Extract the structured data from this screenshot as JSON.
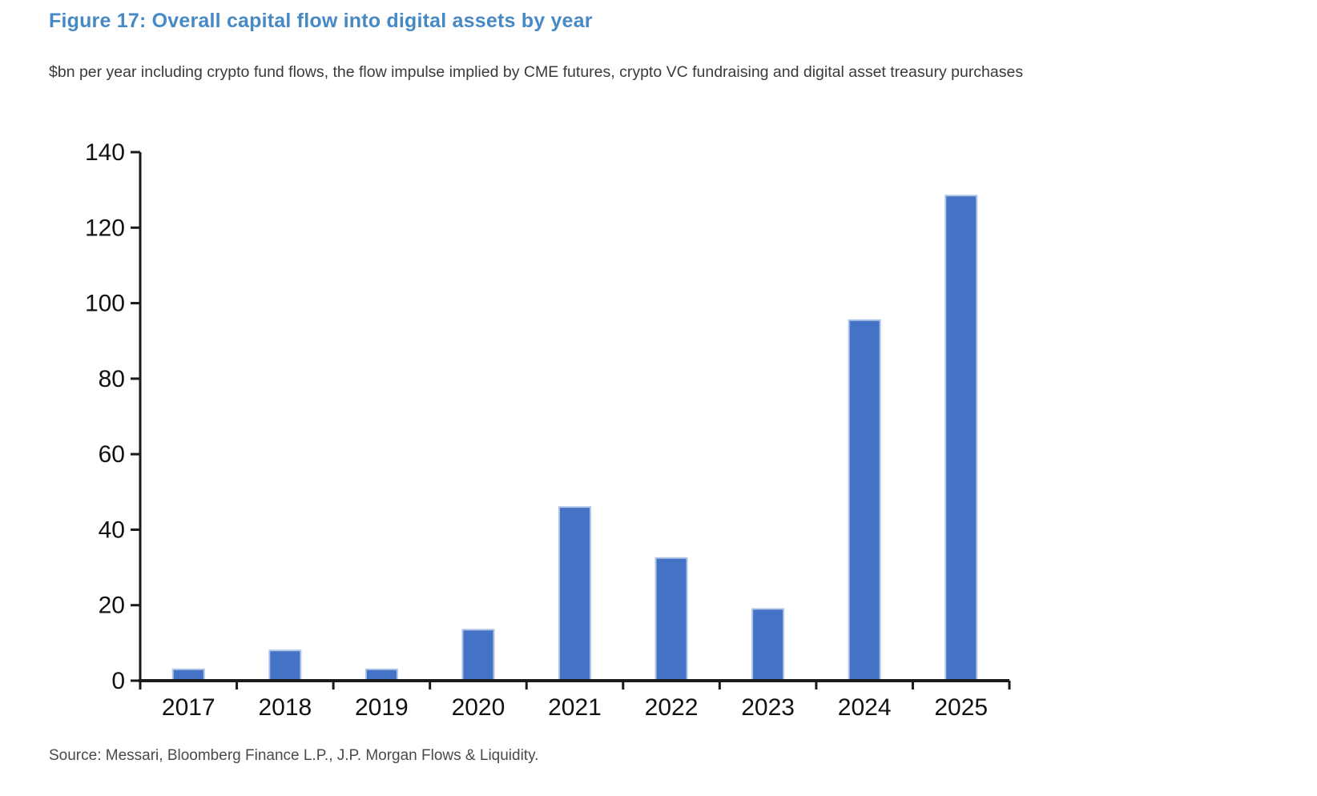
{
  "figure": {
    "title": "Figure 17: Overall capital flow into digital assets by year",
    "subtitle": "$bn per year including crypto fund flows, the flow impulse implied by CME futures, crypto VC fundraising and digital asset treasury purchases",
    "source": "Source: Messari, Bloomberg Finance L.P., J.P. Morgan Flows & Liquidity."
  },
  "chart_data": {
    "type": "bar",
    "title": "Figure 17: Overall capital flow into digital assets by year",
    "subtitle": "$bn per year including crypto fund flows, the flow impulse implied by CME futures, crypto VC fundraising and digital asset treasury purchases",
    "categories": [
      "2017",
      "2018",
      "2019",
      "2020",
      "2021",
      "2022",
      "2023",
      "2024",
      "2025"
    ],
    "values": [
      3,
      8,
      3,
      13.5,
      46,
      32.5,
      19,
      95.5,
      128.5
    ],
    "xlabel": "",
    "ylabel": "",
    "ylim": [
      0,
      140
    ],
    "ytick_interval": 20,
    "ytick_labels": [
      "0",
      "20",
      "40",
      "60",
      "80",
      "100",
      "120",
      "140"
    ],
    "grid": "off",
    "legend": "none",
    "style": {
      "bar_fill": "#4472C4",
      "bar_border": "#AEC3E8",
      "axis_color": "#1A1A1A",
      "title_color": "#4689C4",
      "subtitle_color": "#3A3A3A",
      "source_color": "#4A4A4A",
      "tick_label_color": "#111111"
    }
  }
}
